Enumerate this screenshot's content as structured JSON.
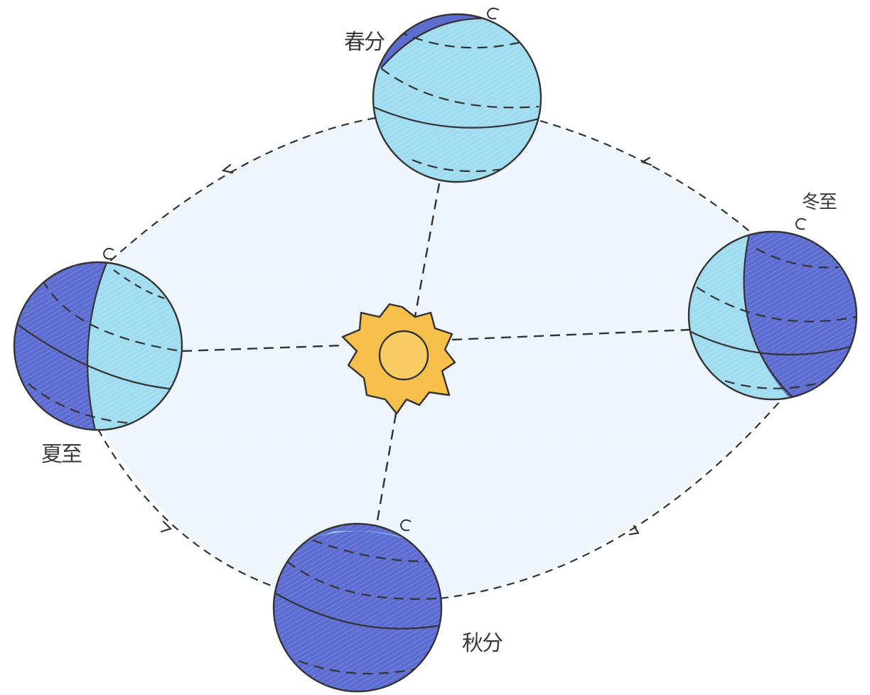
{
  "labels": {
    "spring_equinox": "春分",
    "summer_solstice": "夏至",
    "autumn_equinox": "秋分",
    "winter_solstice": "冬至"
  },
  "colors": {
    "orbit_fill": "#eef5fb",
    "day_side": "#9fdcf0",
    "night_side": "#5d6cd0",
    "sun": "#f6c04a",
    "ink": "#333333"
  },
  "icons": [
    "sun-icon",
    "rotation-arrow-icon",
    "orbit-direction-arrow-icon"
  ]
}
